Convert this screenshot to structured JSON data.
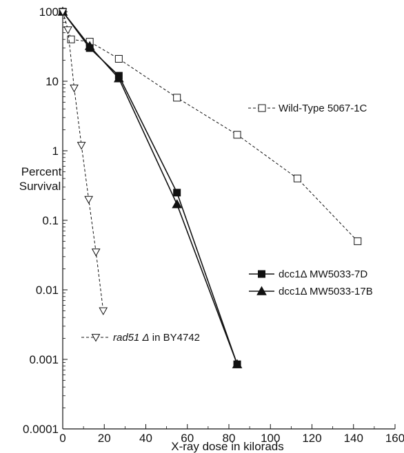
{
  "chart_data": {
    "type": "line",
    "xlabel": "X-ray dose in kilorads",
    "ylabel": [
      "Percent",
      "Survival"
    ],
    "xlim": [
      0,
      160
    ],
    "ylim": [
      0.0001,
      100
    ],
    "yscale": "log",
    "x_ticks": [
      0,
      20,
      40,
      60,
      80,
      100,
      120,
      140,
      160
    ],
    "y_ticks": [
      {
        "value": 100,
        "label": "100"
      },
      {
        "value": 10,
        "label": "10"
      },
      {
        "value": 1,
        "label": "1"
      },
      {
        "value": 0.1,
        "label": "0.1"
      },
      {
        "value": 0.01,
        "label": "0.01"
      },
      {
        "value": 0.001,
        "label": "0.001"
      },
      {
        "value": 0.0001,
        "label": "0.0001"
      }
    ],
    "grid": false,
    "series": [
      {
        "name": "Wild-Type 5067-1C",
        "marker": "open-square",
        "line": "dashed",
        "x": [
          0,
          4,
          13,
          27,
          55,
          84,
          113,
          142
        ],
        "y": [
          100,
          40,
          37,
          21,
          5.8,
          1.7,
          0.4,
          0.05
        ]
      },
      {
        "name": "dcc1Δ MW5033-7D",
        "marker": "filled-square",
        "line": "solid",
        "x": [
          0,
          13,
          27,
          55,
          84
        ],
        "y": [
          100,
          30,
          12,
          0.25,
          0.00085
        ]
      },
      {
        "name": "dcc1Δ MW5033-17B",
        "marker": "filled-triangle",
        "line": "solid",
        "x": [
          0,
          13,
          27,
          55,
          84
        ],
        "y": [
          100,
          32,
          11,
          0.17,
          0.00085
        ]
      },
      {
        "name_parts": [
          "rad51 Δ",
          " in BY4742"
        ],
        "marker": "open-triangle-down",
        "line": "dashed",
        "x": [
          0,
          2.5,
          5.5,
          9,
          12.5,
          16,
          19.5
        ],
        "y": [
          100,
          55,
          8,
          1.2,
          0.2,
          0.035,
          0.005
        ]
      }
    ],
    "legend": [
      {
        "series": 0,
        "text": "Wild-Type 5067-1C",
        "placement": "right-middle-upper"
      },
      {
        "series": 1,
        "text": "dcc1Δ MW5033-7D",
        "placement": "right-middle-lower"
      },
      {
        "series": 2,
        "text": "dcc1Δ MW5033-17B",
        "placement": "right-middle-lower"
      },
      {
        "series": 3,
        "text_italic": "rad51 Δ",
        "text_rest": " in BY4742",
        "placement": "left-lower"
      }
    ]
  }
}
